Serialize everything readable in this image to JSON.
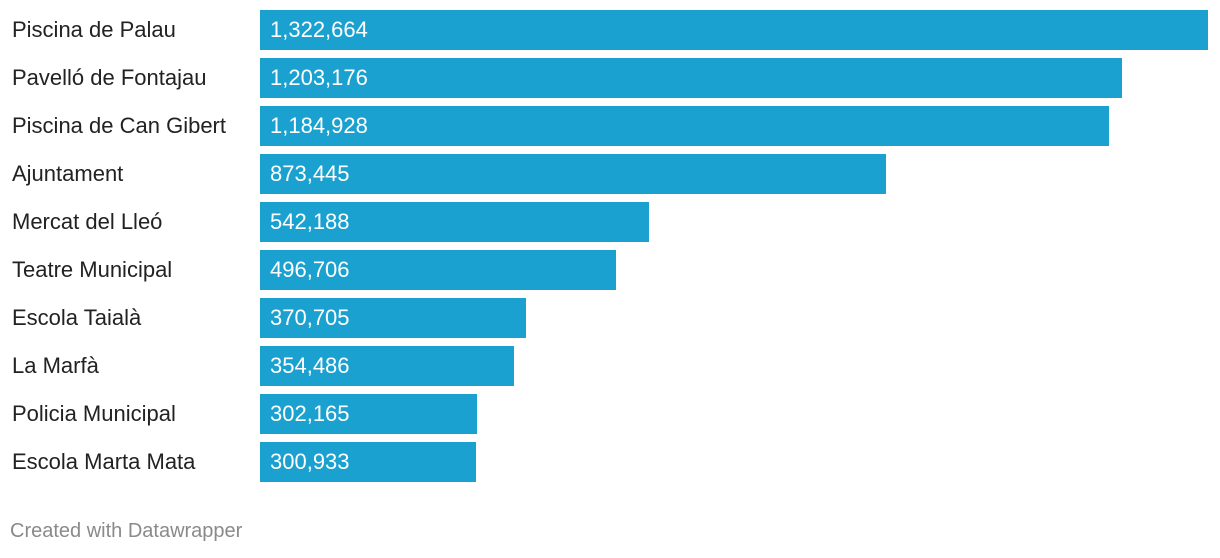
{
  "chart_data": {
    "type": "bar",
    "orientation": "horizontal",
    "categories": [
      "Piscina de Palau",
      "Pavelló de Fontajau",
      "Piscina de Can Gibert",
      "Ajuntament",
      "Mercat del Lleó",
      "Teatre Municipal",
      "Escola Taialà",
      "La Marfà",
      "Policia Municipal",
      "Escola Marta Mata"
    ],
    "values": [
      1322664,
      1203176,
      1184928,
      873445,
      542188,
      496706,
      370705,
      354486,
      302165,
      300933
    ],
    "value_labels": [
      "1,322,664",
      "1,203,176",
      "1,184,928",
      "873,445",
      "542,188",
      "496,706",
      "370,705",
      "354,486",
      "302,165",
      "300,933"
    ],
    "bar_color": "#1ba1cf",
    "xlim": [
      0,
      1322664
    ],
    "grid": false,
    "legend": "none"
  },
  "footer": {
    "credit": "Created with Datawrapper"
  }
}
